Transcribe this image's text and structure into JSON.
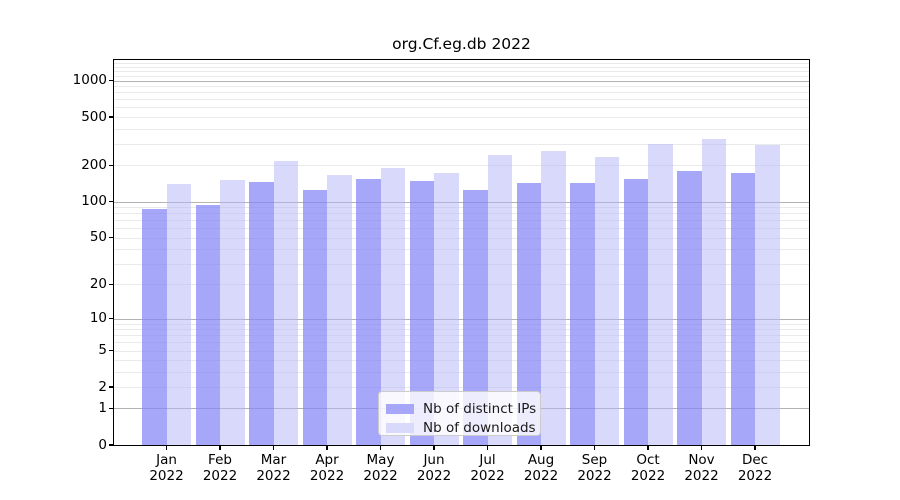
{
  "title": "org.Cf.eg.db 2022",
  "chart_data": {
    "type": "bar",
    "title": "org.Cf.eg.db 2022",
    "categories": [
      "Jan",
      "Feb",
      "Mar",
      "Apr",
      "May",
      "Jun",
      "Jul",
      "Aug",
      "Sep",
      "Oct",
      "Nov",
      "Dec"
    ],
    "category_year": "2022",
    "series": [
      {
        "name": "Nb of distinct IPs",
        "color": "#a7a7f9",
        "bar_rgba": "rgba(133,133,247,0.72)",
        "values": [
          87,
          93,
          145,
          125,
          155,
          148,
          125,
          143,
          143,
          155,
          180,
          171
        ]
      },
      {
        "name": "Nb of downloads",
        "color": "#d9d9fb",
        "bar_rgba": "rgba(179,179,247,0.5)",
        "values": [
          140,
          152,
          215,
          165,
          190,
          174,
          244,
          262,
          234,
          300,
          332,
          295
        ]
      }
    ],
    "yticks": [
      0,
      1,
      2,
      5,
      10,
      20,
      50,
      100,
      200,
      500,
      1000
    ],
    "scale": "log1p",
    "ylim": [
      0,
      1475
    ],
    "grid": {
      "major_color": "#b3b3b3",
      "minor_color": "#eaeaea"
    },
    "legend_position": "lower-center"
  }
}
